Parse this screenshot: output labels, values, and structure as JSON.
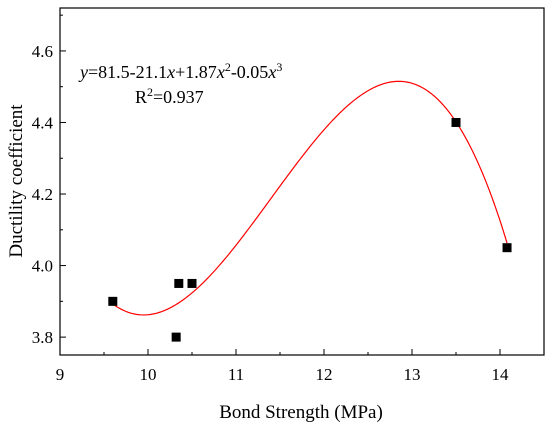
{
  "chart_data": {
    "type": "scatter",
    "xlabel": "Bond Strength (MPa)",
    "ylabel": "Ductility coefficient",
    "xlim": [
      9,
      14.5
    ],
    "ylim": [
      3.75,
      4.72
    ],
    "xticks": [
      "9",
      "10",
      "11",
      "12",
      "13",
      "14"
    ],
    "yticks": [
      "3.8",
      "4.0",
      "4.2",
      "4.4",
      "4.6"
    ],
    "points": [
      {
        "x": 9.6,
        "y": 3.9
      },
      {
        "x": 10.32,
        "y": 3.8
      },
      {
        "x": 10.35,
        "y": 3.95
      },
      {
        "x": 10.5,
        "y": 3.95
      },
      {
        "x": 13.5,
        "y": 4.4
      },
      {
        "x": 14.08,
        "y": 4.05
      }
    ],
    "fit": {
      "x_range": [
        9.6,
        14.08
      ],
      "peak": {
        "x": 12.85,
        "y": 4.515
      },
      "min": {
        "x": 9.95,
        "y": 3.862
      },
      "color": "#ff0000"
    },
    "marker_color": "#000000",
    "grid": false,
    "annotation": {
      "equation": {
        "y": "y",
        "eq_start": "=81.5-21.1",
        "x1": "x",
        "plus": "+1.87",
        "x2": "x",
        "exp2": "2",
        "minus": "-0.05",
        "x3": "x",
        "exp3": "3"
      },
      "r2": {
        "r": "R",
        "exp": "2",
        "value": "=0.937"
      }
    }
  }
}
